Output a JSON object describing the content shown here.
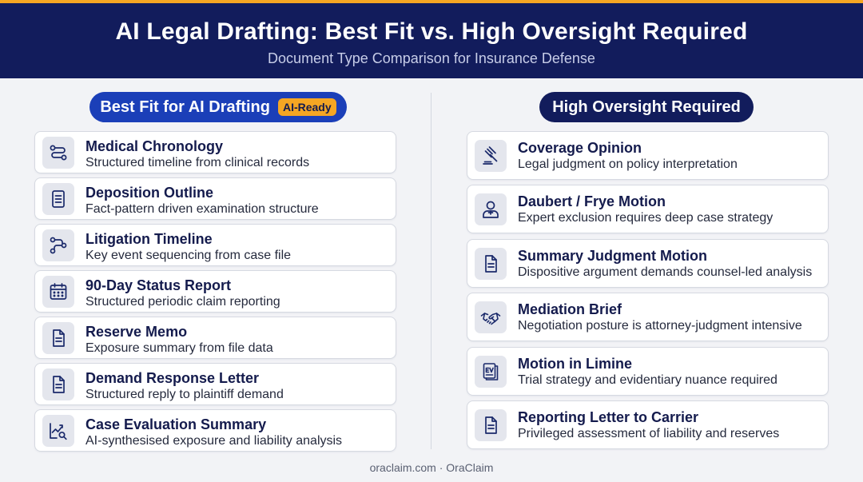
{
  "header": {
    "title": "AI Legal Drafting: Best Fit vs. High Oversight Required",
    "subtitle": "Document Type Comparison for Insurance Defense"
  },
  "left": {
    "heading": "Best Fit for AI Drafting",
    "badge": "AI-Ready",
    "items": [
      {
        "title": "Medical Chronology",
        "desc": "Structured timeline from clinical records",
        "icon": "flow-icon"
      },
      {
        "title": "Deposition Outline",
        "desc": "Fact-pattern driven examination structure",
        "icon": "document-lines-icon"
      },
      {
        "title": "Litigation Timeline",
        "desc": "Key event sequencing from case file",
        "icon": "sequence-icon"
      },
      {
        "title": "90-Day Status Report",
        "desc": "Structured periodic claim reporting",
        "icon": "calendar-icon"
      },
      {
        "title": "Reserve Memo",
        "desc": "Exposure summary from file data",
        "icon": "document-icon"
      },
      {
        "title": "Demand Response Letter",
        "desc": "Structured reply to plaintiff demand",
        "icon": "document-icon"
      },
      {
        "title": "Case Evaluation Summary",
        "desc": "AI-synthesised exposure and liability analysis",
        "icon": "chart-search-icon"
      }
    ]
  },
  "right": {
    "heading": "High Oversight Required",
    "items": [
      {
        "title": "Coverage Opinion",
        "desc": "Legal judgment on policy interpretation",
        "icon": "gavel-icon"
      },
      {
        "title": "Daubert / Frye Motion",
        "desc": "Expert exclusion requires deep case strategy",
        "icon": "expert-icon"
      },
      {
        "title": "Summary Judgment Motion",
        "desc": "Dispositive argument demands counsel-led analysis",
        "icon": "document-icon"
      },
      {
        "title": "Mediation Brief",
        "desc": "Negotiation posture is attorney-judgment intensive",
        "icon": "handshake-icon"
      },
      {
        "title": "Motion in Limine",
        "desc": "Trial strategy and evidentiary nuance required",
        "icon": "evidence-icon"
      },
      {
        "title": "Reporting Letter to Carrier",
        "desc": "Privileged assessment of liability and reserves",
        "icon": "document-icon"
      }
    ]
  },
  "footer": "oraclaim.com · OraClaim",
  "colors": {
    "header_bg": "#121c5c",
    "accent": "#f5a623",
    "left_pill": "#1b3fb8",
    "right_pill": "#121c5c"
  }
}
